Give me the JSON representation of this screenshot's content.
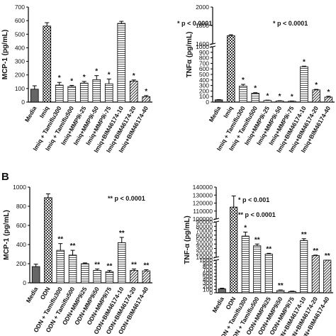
{
  "figure": {
    "panel_labels": [
      "A",
      "B"
    ]
  },
  "chart_data": [
    {
      "type": "bar",
      "panel": "A",
      "ylabel": "MCP-1 (pg/mL)",
      "ylim": [
        0,
        700
      ],
      "yticks": [
        0,
        100,
        200,
        300,
        400,
        500,
        600,
        700
      ],
      "categories": [
        "Media",
        "Imiq",
        "Imiq + Tamiflu300",
        "Imiq + Tamiflu500",
        "Imiq+MMP9i-25",
        "Imiq+MMP9i-50",
        "Imiq+MMP9i-75",
        "Imiq+BIM46174-10",
        "Imiq+BIM46174-20",
        "Imiq+BIM46174-40"
      ],
      "values": [
        95,
        560,
        125,
        115,
        140,
        165,
        135,
        580,
        155,
        40
      ],
      "errors": [
        25,
        25,
        20,
        8,
        12,
        30,
        35,
        15,
        8,
        8
      ],
      "significance": [
        "",
        "",
        "*",
        "*",
        "*",
        "*",
        "*",
        "",
        "*",
        "*"
      ],
      "fills": [
        "#666666",
        "checker",
        "hlines",
        "hlines",
        "hlines",
        "hlines",
        "hlines",
        "hlines",
        "diag",
        "diag"
      ],
      "annotation": "* p < 0.0001"
    },
    {
      "type": "bar",
      "panel": "A",
      "ylabel": "TNFα (pg/mL)",
      "axis_break": [
        1000,
        1600
      ],
      "ylim": [
        0,
        2000
      ],
      "yticks": [
        0,
        100,
        200,
        300,
        400,
        500,
        600,
        700,
        800,
        900,
        1000,
        1600,
        1800,
        2000
      ],
      "categories": [
        "Media",
        "Imiq",
        "Imiq + Tamiflu300",
        "Imiq + Tamiflu500",
        "Imiq+MMP9i-25",
        "Imiq+MMP9i-50",
        "Imiq+MMP9i-75",
        "Imiq+BIM46174-10",
        "Imiq+BIM46174-20",
        "Imiq+BIM46174-40"
      ],
      "values": [
        40,
        1690,
        290,
        160,
        30,
        20,
        15,
        640,
        220,
        90
      ],
      "errors": [
        5,
        10,
        30,
        10,
        5,
        5,
        5,
        10,
        10,
        15
      ],
      "significance": [
        "",
        "",
        "*",
        "*",
        "*",
        "*",
        "*",
        "*",
        "*",
        "*"
      ],
      "fills": [
        "#666666",
        "checker",
        "hlines",
        "hlines",
        "hlines",
        "hlines",
        "hlines",
        "hlines",
        "diag",
        "diag"
      ],
      "annotation": "* p < 0.0001"
    },
    {
      "type": "bar",
      "panel": "B",
      "ylabel": "MCP-1 (pg/mL)",
      "ylim": [
        0,
        1000
      ],
      "yticks": [
        0,
        200,
        400,
        600,
        800,
        1000
      ],
      "categories": [
        "Media",
        "ODN",
        "ODN + Tamiflu300",
        "ODN + Tamiflu500",
        "ODN+MMP9i25",
        "ODN+MMP9i50",
        "ODN+MMP9i75",
        "ODN+BIM46174-10",
        "ODN+BIM46174-20",
        "ODN+BIM46174-40"
      ],
      "values": [
        170,
        890,
        340,
        290,
        200,
        130,
        115,
        420,
        130,
        125
      ],
      "errors": [
        25,
        40,
        70,
        50,
        8,
        15,
        15,
        55,
        15,
        12
      ],
      "significance": [
        "",
        "",
        "**",
        "**",
        "",
        "**",
        "**",
        "**",
        "**",
        "**"
      ],
      "fills": [
        "#666666",
        "checker",
        "hlines",
        "hlines",
        "hlines",
        "hlines",
        "hlines",
        "hlines",
        "diag",
        "diag"
      ],
      "annotation": "** p < 0.0001"
    },
    {
      "type": "bar",
      "panel": "B",
      "ylabel": "TNF-α (pg/mL)",
      "axis_breaks": [
        [
          1000,
          10000
        ],
        [
          90000,
          100000
        ]
      ],
      "ylim": [
        0,
        140000
      ],
      "yticks": [
        0,
        100,
        200,
        300,
        400,
        500,
        600,
        700,
        800,
        900,
        1000,
        10000,
        20000,
        30000,
        40000,
        50000,
        60000,
        70000,
        80000,
        90000,
        100000,
        110000,
        120000,
        130000,
        140000
      ],
      "categories": [
        "Media",
        "ODN",
        "ODN + Tamiflu300",
        "ODN + Tamiflu500",
        "ODN+MMP9i25",
        "ODN+MMP9i50",
        "ODN+MMP9i75",
        "ODN+BIM46174-10",
        "ODN+BIM46174-20",
        "ODN+BIM46174-40"
      ],
      "values": [
        120,
        115000,
        58000,
        36000,
        17500,
        70,
        40,
        48000,
        14000,
        8000
      ],
      "errors": [
        20,
        14000,
        9000,
        4000,
        1500,
        15,
        10,
        4000,
        1000,
        800
      ],
      "significance": [
        "",
        "",
        "*",
        "**",
        "**",
        "**",
        "",
        "**",
        "**",
        "**"
      ],
      "fills": [
        "#666666",
        "checker",
        "hlines",
        "hlines",
        "hlines",
        "hlines",
        "hlines",
        "hlines",
        "diag",
        "diag"
      ],
      "annotations": [
        "* p < 0.001",
        "** p < 0.0001"
      ]
    }
  ]
}
